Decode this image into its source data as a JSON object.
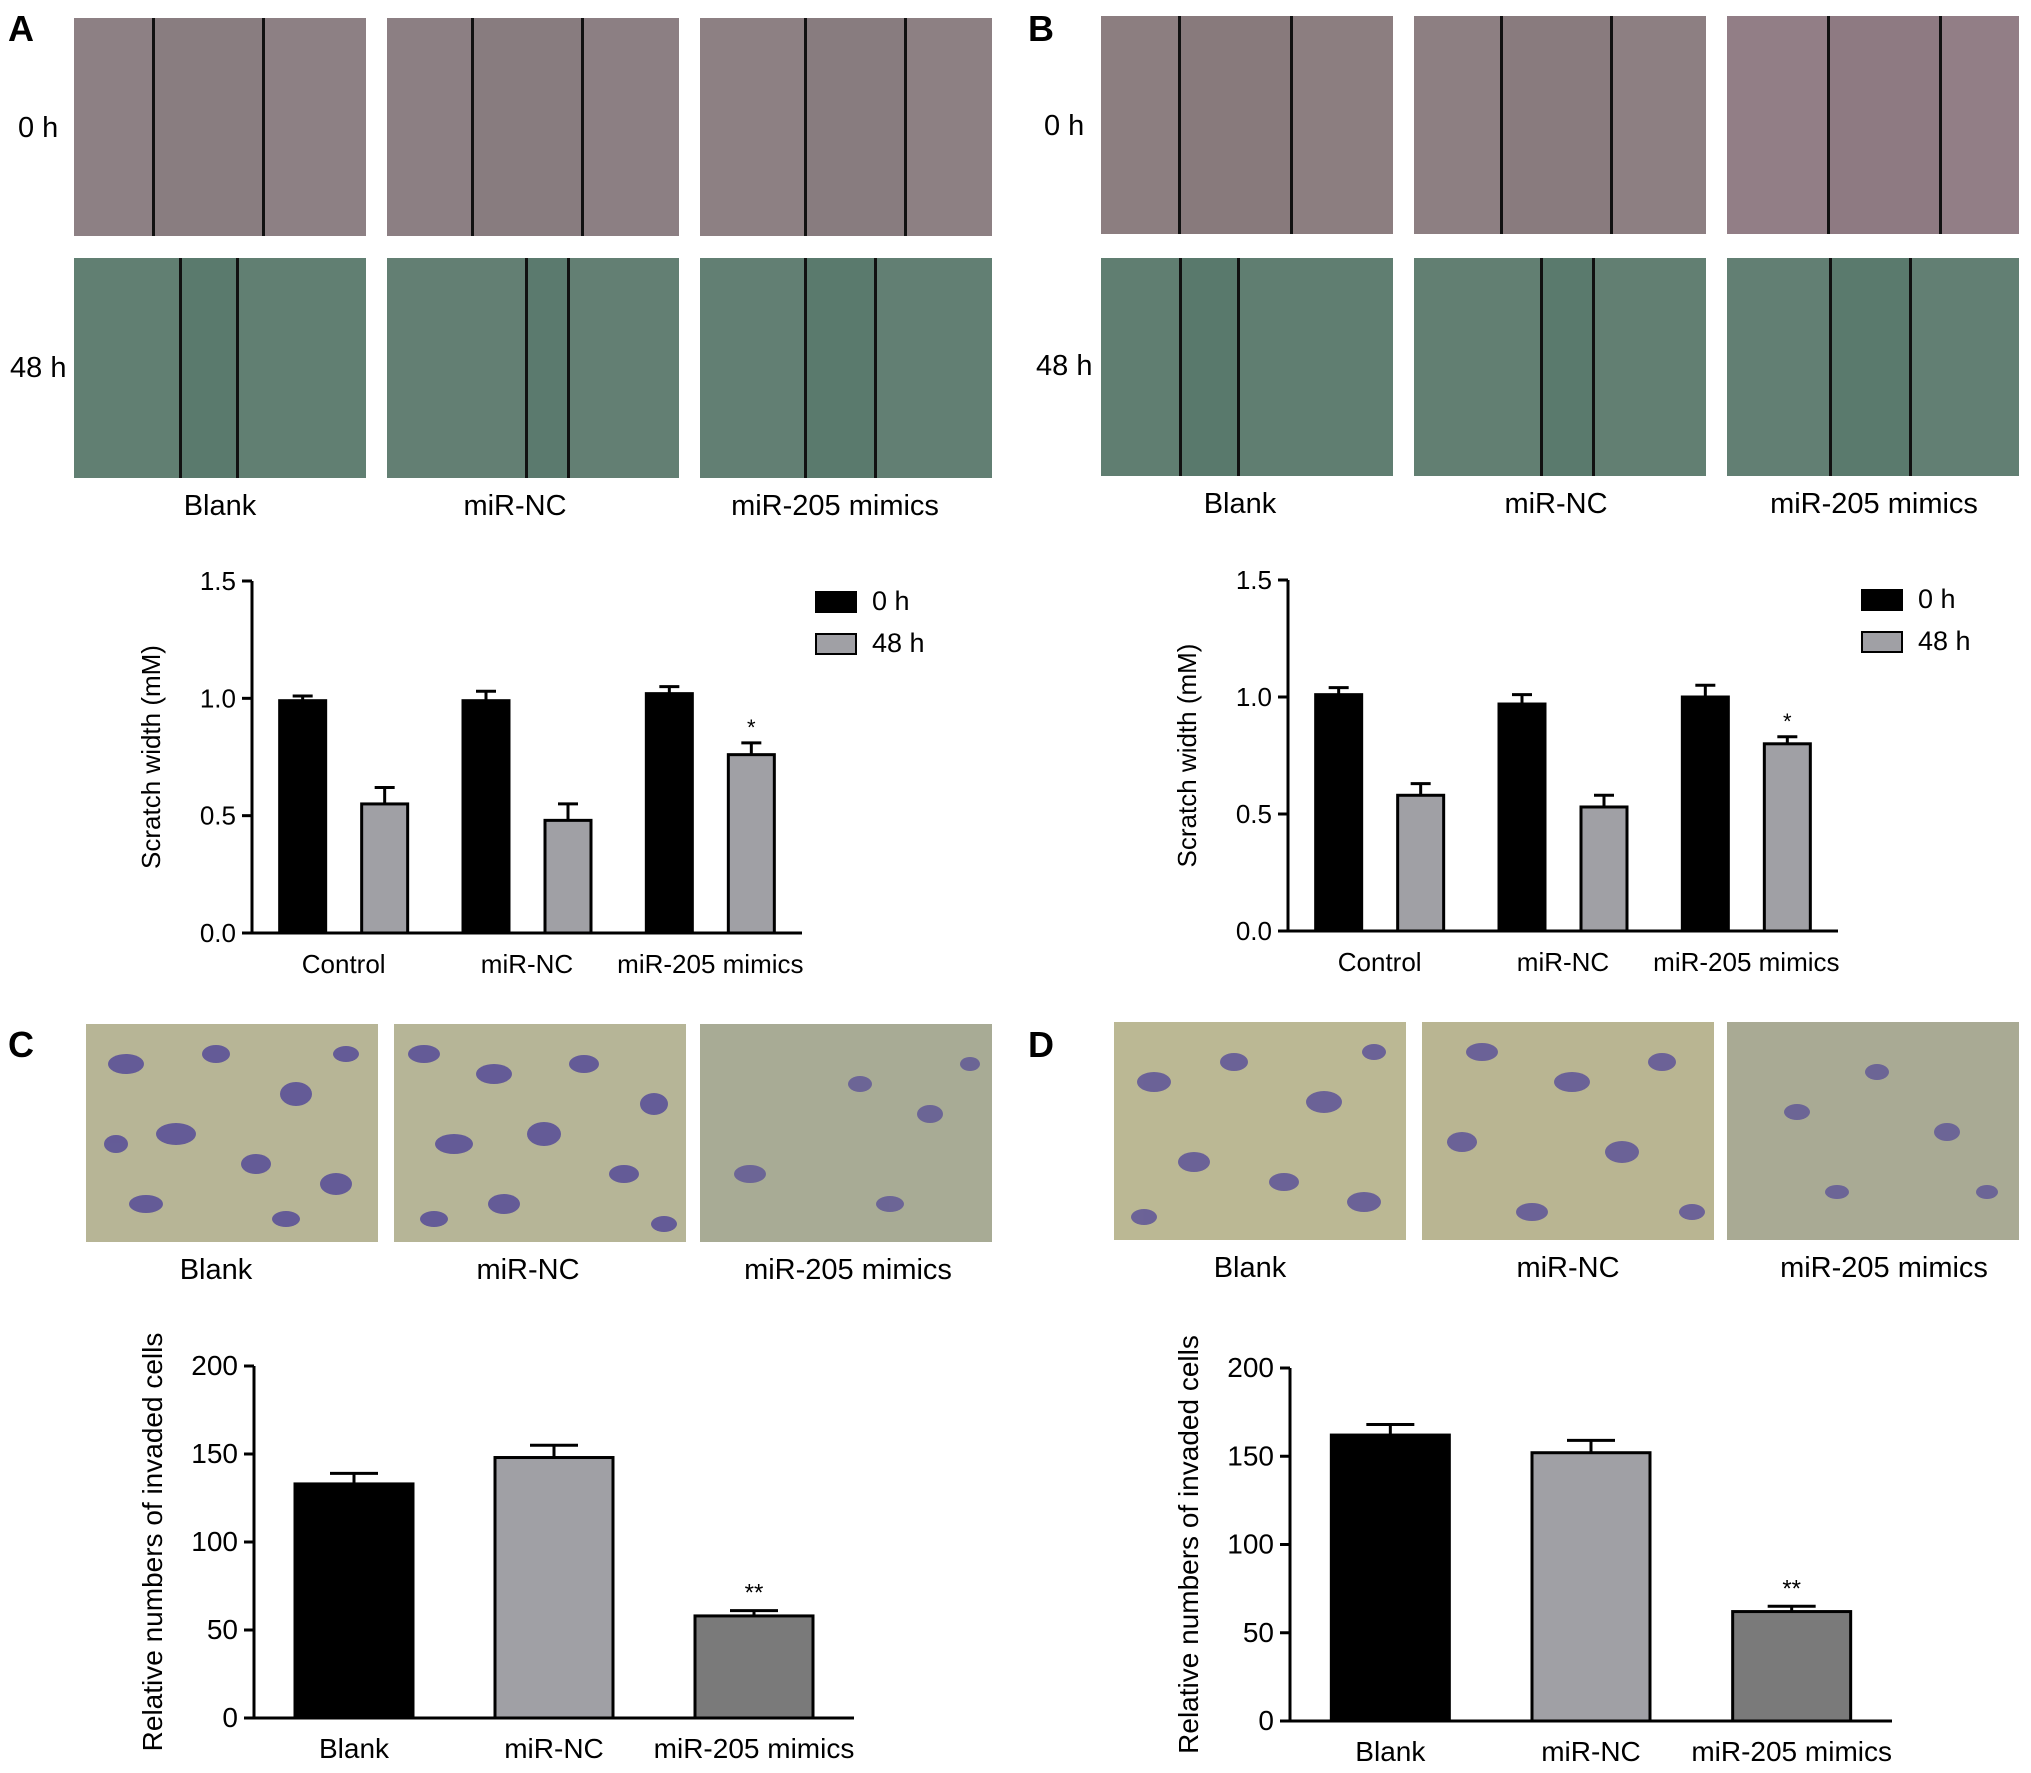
{
  "panels": {
    "A": {
      "letter": "A",
      "row_labels": [
        "0 h",
        "48 h"
      ],
      "conditions": [
        "Blank",
        "miR-NC",
        "miR-205 mimics"
      ]
    },
    "B": {
      "letter": "B",
      "row_labels": [
        "0 h",
        "48 h"
      ],
      "conditions": [
        "Blank",
        "miR-NC",
        "miR-205 mimics"
      ]
    },
    "C": {
      "letter": "C",
      "conditions": [
        "Blank",
        "miR-NC",
        "miR-205 mimics"
      ]
    },
    "D": {
      "letter": "D",
      "conditions": [
        "Blank",
        "miR-NC",
        "miR-205 mimics"
      ]
    }
  },
  "colors": {
    "black_bar": "#000000",
    "grey_bar": "#a0a0a5",
    "dark_grey_bar": "#7a7a7a",
    "scratch_0h": "#8c7f82",
    "scratch_48h": "#607e72",
    "transwell_bg": "#b9b89a",
    "transwell_cells": "#5a4f9a"
  },
  "chart_data": [
    {
      "panel": "A",
      "type": "bar",
      "categories": [
        "Control",
        "miR-NC",
        "miR-205 mimics"
      ],
      "series": [
        {
          "name": "0 h",
          "values": [
            0.99,
            0.99,
            1.02
          ],
          "errors": [
            0.02,
            0.04,
            0.03
          ],
          "color": "#000000"
        },
        {
          "name": "48 h",
          "values": [
            0.55,
            0.48,
            0.76
          ],
          "errors": [
            0.07,
            0.07,
            0.05
          ],
          "color": "#a0a0a5"
        }
      ],
      "annotations": [
        "",
        "",
        "*"
      ],
      "ylabel": "Scratch width (mM)",
      "ylim": [
        0,
        1.5
      ],
      "yticks": [
        "0.0",
        "0.5",
        "1.0",
        "1.5"
      ],
      "legend": "top-right"
    },
    {
      "panel": "B",
      "type": "bar",
      "categories": [
        "Control",
        "miR-NC",
        "miR-205 mimics"
      ],
      "series": [
        {
          "name": "0 h",
          "values": [
            1.01,
            0.97,
            1.0
          ],
          "errors": [
            0.03,
            0.04,
            0.05
          ],
          "color": "#000000"
        },
        {
          "name": "48 h",
          "values": [
            0.58,
            0.53,
            0.8
          ],
          "errors": [
            0.05,
            0.05,
            0.03
          ],
          "color": "#a0a0a5"
        }
      ],
      "annotations": [
        "",
        "",
        "*"
      ],
      "ylabel": "Scratch width (mM)",
      "ylim": [
        0,
        1.5
      ],
      "yticks": [
        "0.0",
        "0.5",
        "1.0",
        "1.5"
      ],
      "legend": "top-right"
    },
    {
      "panel": "C",
      "type": "bar",
      "categories": [
        "Blank",
        "miR-NC",
        "miR-205 mimics"
      ],
      "values": [
        133,
        148,
        58
      ],
      "errors": [
        6,
        7,
        3
      ],
      "colors": [
        "#000000",
        "#a0a0a5",
        "#7a7a7a"
      ],
      "annotations": [
        "",
        "",
        "**"
      ],
      "ylabel": "Relative numbers of invaded cells",
      "ylim": [
        0,
        200
      ],
      "yticks": [
        "0",
        "50",
        "100",
        "150",
        "200"
      ]
    },
    {
      "panel": "D",
      "type": "bar",
      "categories": [
        "Blank",
        "miR-NC",
        "miR-205 mimics"
      ],
      "values": [
        162,
        152,
        62
      ],
      "errors": [
        6,
        7,
        3
      ],
      "colors": [
        "#000000",
        "#a0a0a5",
        "#7a7a7a"
      ],
      "annotations": [
        "",
        "",
        "**"
      ],
      "ylabel": "Relative numbers of invaded cells",
      "ylim": [
        0,
        200
      ],
      "yticks": [
        "0",
        "50",
        "100",
        "150",
        "200"
      ]
    }
  ]
}
